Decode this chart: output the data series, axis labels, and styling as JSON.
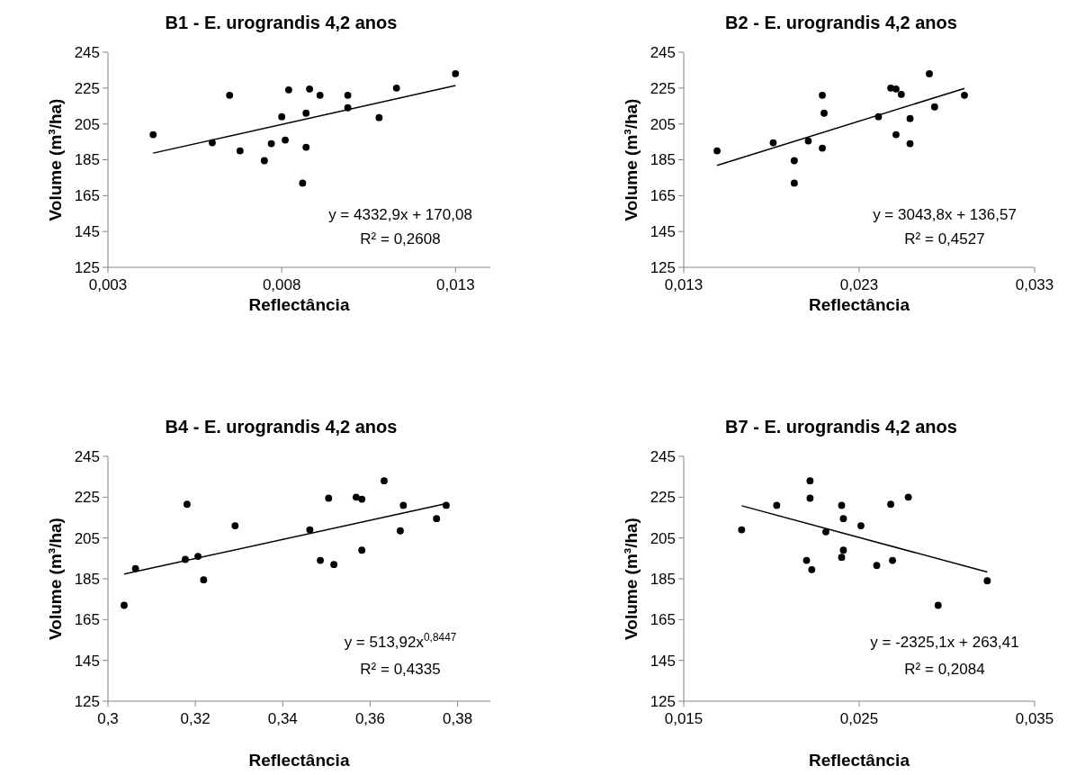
{
  "chart_data": [
    {
      "type": "scatter",
      "title": "B1 - E. urograndis 4,2 anos",
      "xlabel": "Reflectância",
      "ylabel": "Volume (m³/ha)",
      "xlim": [
        0.003,
        0.014
      ],
      "xticks": [
        {
          "value": 0.003,
          "label": "0,003"
        },
        {
          "value": 0.008,
          "label": "0,008"
        },
        {
          "value": 0.013,
          "label": "0,013"
        }
      ],
      "ylim": [
        125,
        245
      ],
      "yticks": [
        125,
        145,
        165,
        185,
        205,
        225,
        245
      ],
      "grid": false,
      "series": [
        {
          "marker": "circle",
          "color": "#000000",
          "x": [
            0.0043,
            0.006,
            0.0065,
            0.0068,
            0.0075,
            0.0077,
            0.008,
            0.0081,
            0.0082,
            0.0086,
            0.0087,
            0.0087,
            0.0088,
            0.0091,
            0.0099,
            0.0099,
            0.0108,
            0.0113,
            0.013
          ],
          "values": [
            199,
            194.5,
            221,
            190,
            184.5,
            194,
            209,
            196,
            224,
            172,
            192,
            211,
            224.5,
            221,
            221,
            214,
            208.5,
            225,
            233
          ]
        },
        {
          "type": "line",
          "marker": "none",
          "color": "#000000",
          "x": [
            0.0043,
            0.013
          ],
          "values": [
            188.7,
            226.4
          ]
        }
      ],
      "annotations": [
        "y = 4332,9x + 170,08",
        "R² = 0,2608"
      ]
    },
    {
      "type": "scatter",
      "title": "B2 - E. urograndis 4,2 anos",
      "xlabel": "Reflectância",
      "ylabel": "Volume (m³/ha)",
      "xlim": [
        0.013,
        0.033
      ],
      "xticks": [
        {
          "value": 0.013,
          "label": "0,013"
        },
        {
          "value": 0.023,
          "label": "0,023"
        },
        {
          "value": 0.033,
          "label": "0,033"
        }
      ],
      "ylim": [
        125,
        245
      ],
      "yticks": [
        125,
        145,
        165,
        185,
        205,
        225,
        245
      ],
      "grid": false,
      "series": [
        {
          "marker": "circle",
          "color": "#000000",
          "x": [
            0.0149,
            0.0181,
            0.0193,
            0.0193,
            0.0201,
            0.0209,
            0.0209,
            0.021,
            0.0241,
            0.0248,
            0.0251,
            0.0251,
            0.0254,
            0.0259,
            0.0259,
            0.027,
            0.0273,
            0.029
          ],
          "values": [
            190,
            194.5,
            184.5,
            172,
            195.5,
            221,
            191.5,
            211,
            209,
            225,
            224.5,
            199,
            221.5,
            194,
            208,
            233,
            214.5,
            221
          ]
        },
        {
          "type": "line",
          "marker": "none",
          "color": "#000000",
          "x": [
            0.0149,
            0.029
          ],
          "values": [
            181.9,
            224.8
          ]
        }
      ],
      "annotations": [
        "y = 3043,8x + 136,57",
        "R² = 0,4527"
      ]
    },
    {
      "type": "scatter",
      "title": "B4 - E. urograndis 4,2 anos",
      "xlabel": "Reflectância",
      "ylabel": "Volume (m³/ha)",
      "xlim": [
        0.3,
        0.3875
      ],
      "xticks": [
        {
          "value": 0.3,
          "label": "0,3"
        },
        {
          "value": 0.32,
          "label": "0,32"
        },
        {
          "value": 0.34,
          "label": "0,34"
        },
        {
          "value": 0.36,
          "label": "0,36"
        },
        {
          "value": 0.38,
          "label": "0,38"
        }
      ],
      "ylim": [
        125,
        245
      ],
      "yticks": [
        125,
        145,
        165,
        185,
        205,
        225,
        245
      ],
      "grid": false,
      "series": [
        {
          "marker": "circle",
          "color": "#000000",
          "x": [
            0.3037,
            0.3063,
            0.3177,
            0.3181,
            0.3206,
            0.3219,
            0.3291,
            0.3462,
            0.3486,
            0.3505,
            0.3517,
            0.3568,
            0.3581,
            0.3581,
            0.3632,
            0.3669,
            0.3676,
            0.3752,
            0.3774
          ],
          "values": [
            172,
            190,
            194.5,
            221.5,
            196,
            184.5,
            211,
            209,
            194,
            224.5,
            192,
            225,
            224,
            199,
            233,
            208.5,
            221,
            214.5,
            221
          ]
        },
        {
          "type": "line",
          "marker": "none",
          "color": "#000000",
          "x": [
            0.3037,
            0.3774
          ],
          "values": [
            187.3,
            221.8
          ]
        }
      ],
      "annotations": [
        "y = 513,92x$^{0,8447}$",
        "R² = 0,4335"
      ]
    },
    {
      "type": "scatter",
      "title": "B7 - E. urograndis 4,2 anos",
      "xlabel": "Reflectância",
      "ylabel": "Volume (m³/ha)",
      "xlim": [
        0.015,
        0.035
      ],
      "xticks": [
        {
          "value": 0.015,
          "label": "0,015"
        },
        {
          "value": 0.025,
          "label": "0,025"
        },
        {
          "value": 0.035,
          "label": "0,035"
        }
      ],
      "ylim": [
        125,
        245
      ],
      "yticks": [
        125,
        145,
        165,
        185,
        205,
        225,
        245
      ],
      "grid": false,
      "series": [
        {
          "marker": "circle",
          "color": "#000000",
          "x": [
            0.0183,
            0.0203,
            0.0222,
            0.0222,
            0.022,
            0.0223,
            0.0231,
            0.024,
            0.0241,
            0.0241,
            0.024,
            0.0251,
            0.026,
            0.0268,
            0.0269,
            0.0278,
            0.0295,
            0.0323
          ],
          "values": [
            209,
            221,
            233,
            224.5,
            194,
            189.5,
            208,
            221,
            214.5,
            199,
            195.5,
            211,
            191.5,
            221.5,
            194,
            225,
            172,
            184
          ]
        },
        {
          "type": "line",
          "marker": "none",
          "color": "#000000",
          "x": [
            0.0183,
            0.0323
          ],
          "values": [
            220.8,
            188.3
          ]
        }
      ],
      "annotations": [
        "y = -2325,1x + 263,41",
        "R² = 0,2084"
      ]
    }
  ]
}
